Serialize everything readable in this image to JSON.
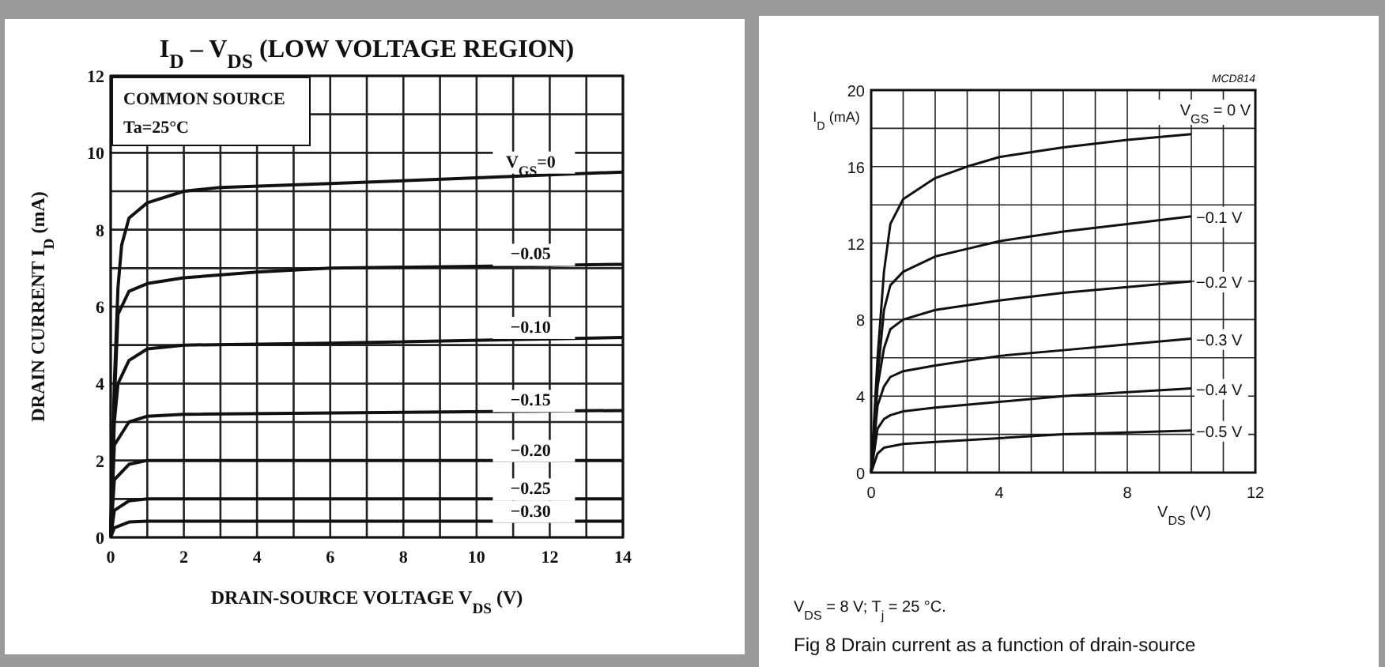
{
  "chart_data": [
    {
      "type": "line",
      "title": "I$_{D}$ – V$_{DS}$   (LOW VOLTAGE REGION)",
      "xlabel": "DRAIN-SOURCE VOLTAGE   V$_{DS}$   (V)",
      "ylabel": "DRAIN CURRENT   I$_{D}$   (mA)",
      "annotations": [
        "COMMON SOURCE",
        "Ta=25°C"
      ],
      "xlim": [
        0,
        14
      ],
      "ylim": [
        0,
        12
      ],
      "xticks": [
        0,
        {
          "value": 1,
          "label": null
        },
        2,
        {
          "value": 3,
          "label": null
        },
        4,
        {
          "value": 5,
          "label": null
        },
        6,
        {
          "value": 7,
          "label": null
        },
        8,
        {
          "value": 9,
          "label": null
        },
        10,
        {
          "value": 11,
          "label": null
        },
        12,
        {
          "value": 13,
          "label": null
        },
        14
      ],
      "yticks": [
        0,
        {
          "value": 1,
          "label": null
        },
        2,
        {
          "value": 3,
          "label": null
        },
        4,
        {
          "value": 5,
          "label": null
        },
        6,
        {
          "value": 7,
          "label": null
        },
        8,
        {
          "value": 9,
          "label": null
        },
        10,
        {
          "value": 11,
          "label": null
        },
        12
      ],
      "grid": true,
      "legend": false,
      "marker": "none",
      "line_style": "solid",
      "series": [
        {
          "name": "V$_{GS}$=0",
          "color": "#111111",
          "x": [
            0,
            0.1,
            0.2,
            0.3,
            0.5,
            1,
            2,
            3,
            6,
            10,
            14
          ],
          "values": [
            0,
            4,
            6.5,
            7.6,
            8.3,
            8.7,
            9,
            9.1,
            9.2,
            9.35,
            9.5
          ]
        },
        {
          "name": "−0.05",
          "color": "#111111",
          "x": [
            0,
            0.1,
            0.2,
            0.5,
            1,
            2,
            4,
            6,
            10,
            14
          ],
          "values": [
            0,
            3.5,
            5.8,
            6.4,
            6.6,
            6.75,
            6.9,
            7,
            7.05,
            7.1
          ]
        },
        {
          "name": "−0.10",
          "color": "#111111",
          "x": [
            0,
            0.1,
            0.2,
            0.5,
            1,
            2,
            6,
            14
          ],
          "values": [
            0,
            3,
            4,
            4.6,
            4.9,
            5,
            5.05,
            5.2
          ]
        },
        {
          "name": "−0.15",
          "color": "#111111",
          "x": [
            0,
            0.1,
            0.5,
            1,
            2,
            14
          ],
          "values": [
            0,
            2.4,
            3,
            3.15,
            3.2,
            3.3
          ]
        },
        {
          "name": "−0.20",
          "color": "#111111",
          "x": [
            0,
            0.1,
            0.5,
            1,
            14
          ],
          "values": [
            0,
            1.5,
            1.9,
            2,
            2
          ]
        },
        {
          "name": "−0.25",
          "color": "#111111",
          "x": [
            0,
            0.1,
            0.5,
            1,
            14
          ],
          "values": [
            0,
            0.7,
            0.95,
            1,
            1
          ]
        },
        {
          "name": "−0.30",
          "color": "#111111",
          "x": [
            0,
            0.1,
            0.5,
            1,
            14
          ],
          "values": [
            0,
            0.25,
            0.4,
            0.42,
            0.42
          ]
        }
      ]
    },
    {
      "type": "line",
      "xlabel": "V$_{DS}$ (V)",
      "ylabel": "I$_{D}$ (mA)",
      "annotations": [
        "MCD814",
        "V$_{DS}$ = 8 V; T$_{j}$ = 25 °C.",
        "Fig 8    Drain current as a function of drain-source"
      ],
      "xlim": [
        0,
        12
      ],
      "ylim": [
        0,
        20
      ],
      "xticks": [
        0,
        {
          "value": 1,
          "label": null
        },
        {
          "value": 2,
          "label": null
        },
        {
          "value": 3,
          "label": null
        },
        4,
        {
          "value": 5,
          "label": null
        },
        {
          "value": 6,
          "label": null
        },
        {
          "value": 7,
          "label": null
        },
        8,
        {
          "value": 9,
          "label": null
        },
        {
          "value": 10,
          "label": null
        },
        {
          "value": 11,
          "label": null
        },
        12
      ],
      "yticks": [
        0,
        {
          "value": 2,
          "label": null
        },
        4,
        {
          "value": 6,
          "label": null
        },
        8,
        {
          "value": 10,
          "label": null
        },
        12,
        {
          "value": 14,
          "label": null
        },
        16,
        {
          "value": 18,
          "label": null
        },
        20
      ],
      "grid": true,
      "legend": false,
      "marker": "none",
      "line_style": "solid",
      "series": [
        {
          "name": "V$_{GS}$ = 0 V",
          "color": "#111111",
          "x": [
            0,
            0.2,
            0.4,
            0.6,
            1,
            2,
            3,
            4,
            6,
            8,
            10
          ],
          "values": [
            0,
            6,
            10.5,
            13,
            14.3,
            15.4,
            16,
            16.5,
            17,
            17.4,
            17.7
          ]
        },
        {
          "name": "−0.1 V",
          "color": "#111111",
          "x": [
            0,
            0.2,
            0.4,
            0.6,
            1,
            2,
            3,
            4,
            6,
            8,
            10
          ],
          "values": [
            0,
            5,
            8.5,
            9.8,
            10.5,
            11.3,
            11.7,
            12.1,
            12.6,
            13,
            13.4
          ]
        },
        {
          "name": "−0.2 V",
          "color": "#111111",
          "x": [
            0,
            0.2,
            0.4,
            0.6,
            1,
            2,
            4,
            6,
            8,
            10
          ],
          "values": [
            0,
            4.5,
            6.5,
            7.5,
            8,
            8.5,
            9,
            9.4,
            9.7,
            10
          ]
        },
        {
          "name": "−0.3 V",
          "color": "#111111",
          "x": [
            0,
            0.2,
            0.4,
            0.6,
            1,
            2,
            4,
            6,
            8,
            10
          ],
          "values": [
            0,
            3.5,
            4.5,
            5,
            5.3,
            5.6,
            6.1,
            6.4,
            6.7,
            7
          ]
        },
        {
          "name": "−0.4 V",
          "color": "#111111",
          "x": [
            0,
            0.2,
            0.4,
            0.6,
            1,
            2,
            4,
            6,
            8,
            10
          ],
          "values": [
            0,
            2.3,
            2.8,
            3,
            3.2,
            3.4,
            3.7,
            4,
            4.2,
            4.4
          ]
        },
        {
          "name": "−0.5 V",
          "color": "#111111",
          "x": [
            0,
            0.2,
            0.4,
            1,
            2,
            4,
            6,
            8,
            10
          ],
          "values": [
            0,
            1,
            1.3,
            1.5,
            1.6,
            1.8,
            2,
            2.1,
            2.2
          ]
        }
      ]
    }
  ]
}
